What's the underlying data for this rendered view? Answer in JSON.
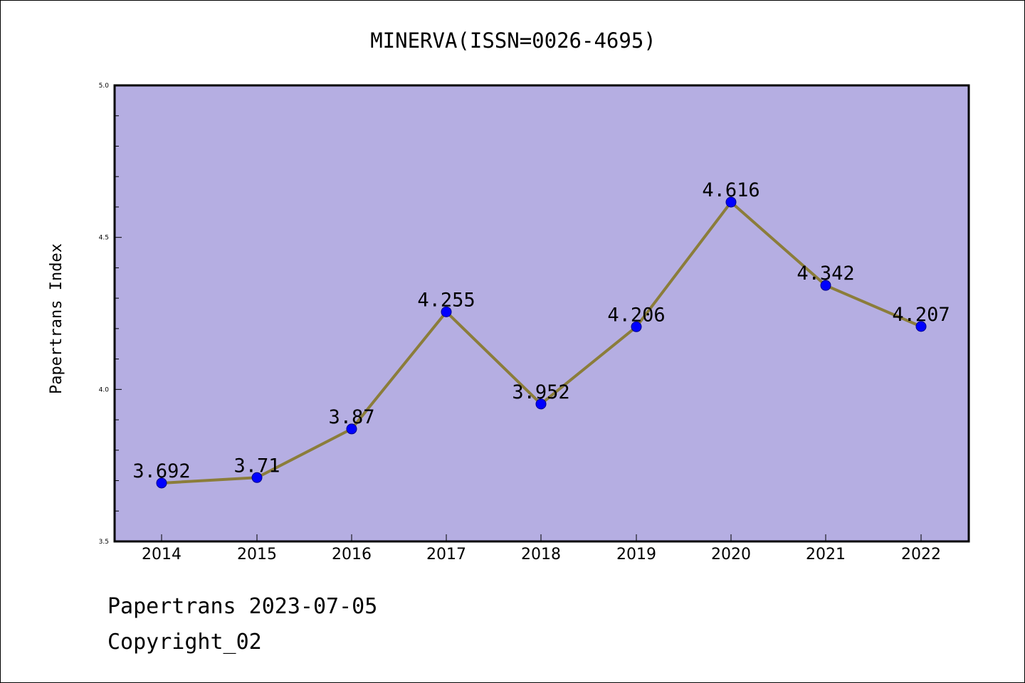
{
  "chart_data": {
    "type": "line",
    "title": "MINERVA(ISSN=0026-4695)",
    "xlabel": "",
    "ylabel": "Papertrans Index",
    "x": [
      "2014",
      "2015",
      "2016",
      "2017",
      "2018",
      "2019",
      "2020",
      "2021",
      "2022"
    ],
    "y_ticks": [
      "3.5",
      "4.0",
      "4.5",
      "5.0"
    ],
    "ylim": [
      3.5,
      5.0
    ],
    "grid": false,
    "series": [
      {
        "values": [
          3.692,
          3.71,
          3.87,
          4.255,
          3.952,
          4.206,
          4.616,
          4.342,
          4.207
        ],
        "labels": [
          "3.692",
          "3.71",
          "3.87",
          "4.255",
          "3.952",
          "4.206",
          "4.616",
          "4.342",
          "4.207"
        ]
      }
    ],
    "colors": {
      "plot_background": "#b5aee2",
      "line": "#8b7d3a",
      "marker": "#0000ff",
      "marker_edge": "#00008b",
      "axis": "#000000"
    }
  },
  "footer": {
    "date_line": "Papertrans 2023-07-05",
    "copyright": "Copyright_02"
  }
}
